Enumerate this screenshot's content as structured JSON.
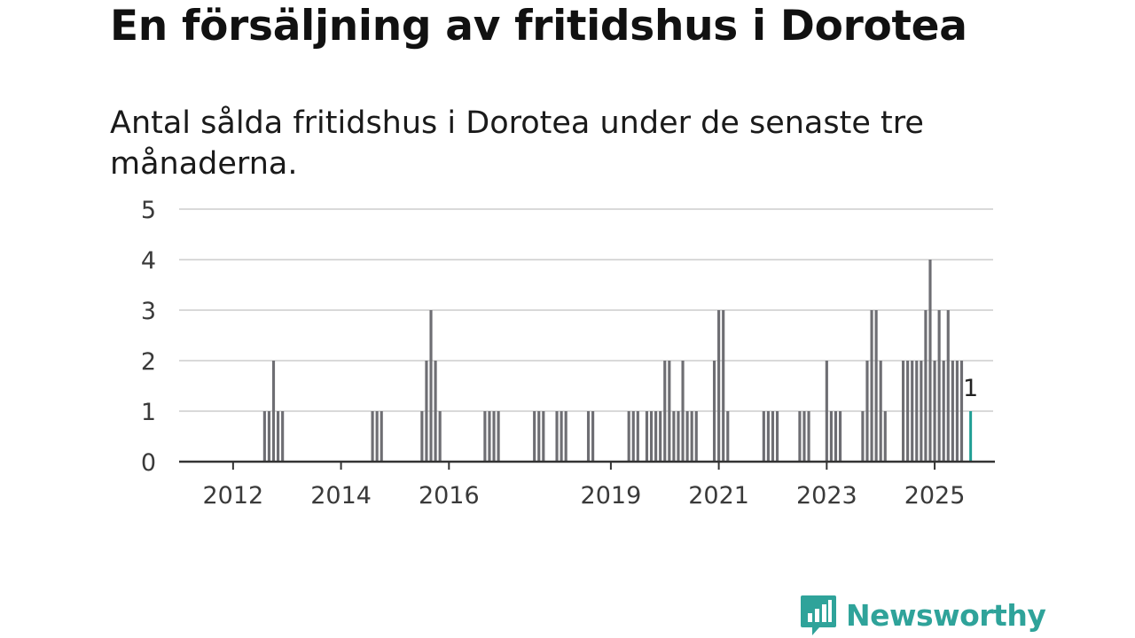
{
  "header": {
    "title": "En försäljning av fritidshus i Dorotea",
    "subtitle": "Antal sålda fritidshus i Dorotea under de senaste tre månaderna."
  },
  "brand": {
    "name": "Newsworthy",
    "color": "#2fa39a"
  },
  "colors": {
    "bar": "#6e6e73",
    "highlight": "#1f9e94",
    "grid": "#d9d9d9",
    "axis": "#333333"
  },
  "chart_data": {
    "type": "bar",
    "ylim": [
      0,
      5
    ],
    "yticks": [
      0,
      1,
      2,
      3,
      4,
      5
    ],
    "xlim": [
      "2011-01",
      "2026-02"
    ],
    "xticks": [
      {
        "label": "2012",
        "date": "2012-01"
      },
      {
        "label": "2014",
        "date": "2014-01"
      },
      {
        "label": "2016",
        "date": "2016-01"
      },
      {
        "label": "2019",
        "date": "2019-01"
      },
      {
        "label": "2021",
        "date": "2021-01"
      },
      {
        "label": "2023",
        "date": "2023-01"
      },
      {
        "label": "2025",
        "date": "2025-01"
      }
    ],
    "series": [
      {
        "values": [
          [
            "2012-08",
            1
          ],
          [
            "2012-09",
            1
          ],
          [
            "2012-10",
            2
          ],
          [
            "2012-11",
            1
          ],
          [
            "2012-12",
            1
          ],
          [
            "2014-08",
            1
          ],
          [
            "2014-09",
            1
          ],
          [
            "2014-10",
            1
          ],
          [
            "2015-07",
            1
          ],
          [
            "2015-08",
            2
          ],
          [
            "2015-09",
            3
          ],
          [
            "2015-10",
            2
          ],
          [
            "2015-11",
            1
          ],
          [
            "2016-09",
            1
          ],
          [
            "2016-10",
            1
          ],
          [
            "2016-11",
            1
          ],
          [
            "2016-12",
            1
          ],
          [
            "2017-08",
            1
          ],
          [
            "2017-09",
            1
          ],
          [
            "2017-10",
            1
          ],
          [
            "2018-01",
            1
          ],
          [
            "2018-02",
            1
          ],
          [
            "2018-03",
            1
          ],
          [
            "2018-08",
            1
          ],
          [
            "2018-09",
            1
          ],
          [
            "2019-05",
            1
          ],
          [
            "2019-06",
            1
          ],
          [
            "2019-07",
            1
          ],
          [
            "2019-09",
            1
          ],
          [
            "2019-10",
            1
          ],
          [
            "2019-11",
            1
          ],
          [
            "2019-12",
            1
          ],
          [
            "2020-01",
            2
          ],
          [
            "2020-02",
            2
          ],
          [
            "2020-03",
            1
          ],
          [
            "2020-04",
            1
          ],
          [
            "2020-05",
            2
          ],
          [
            "2020-06",
            1
          ],
          [
            "2020-07",
            1
          ],
          [
            "2020-08",
            1
          ],
          [
            "2020-12",
            2
          ],
          [
            "2021-01",
            3
          ],
          [
            "2021-02",
            3
          ],
          [
            "2021-03",
            1
          ],
          [
            "2021-11",
            1
          ],
          [
            "2021-12",
            1
          ],
          [
            "2022-01",
            1
          ],
          [
            "2022-02",
            1
          ],
          [
            "2022-07",
            1
          ],
          [
            "2022-08",
            1
          ],
          [
            "2022-09",
            1
          ],
          [
            "2023-01",
            2
          ],
          [
            "2023-02",
            1
          ],
          [
            "2023-03",
            1
          ],
          [
            "2023-04",
            1
          ],
          [
            "2023-09",
            1
          ],
          [
            "2023-10",
            2
          ],
          [
            "2023-11",
            3
          ],
          [
            "2023-12",
            3
          ],
          [
            "2024-01",
            2
          ],
          [
            "2024-02",
            1
          ],
          [
            "2024-06",
            2
          ],
          [
            "2024-07",
            2
          ],
          [
            "2024-08",
            2
          ],
          [
            "2024-09",
            2
          ],
          [
            "2024-10",
            2
          ],
          [
            "2024-11",
            3
          ],
          [
            "2024-12",
            4
          ],
          [
            "2025-01",
            2
          ],
          [
            "2025-02",
            3
          ],
          [
            "2025-03",
            2
          ],
          [
            "2025-04",
            3
          ],
          [
            "2025-05",
            2
          ],
          [
            "2025-06",
            2
          ],
          [
            "2025-07",
            2
          ]
        ]
      }
    ],
    "highlight": {
      "date": "2025-09",
      "value": 1,
      "label": "1"
    }
  }
}
